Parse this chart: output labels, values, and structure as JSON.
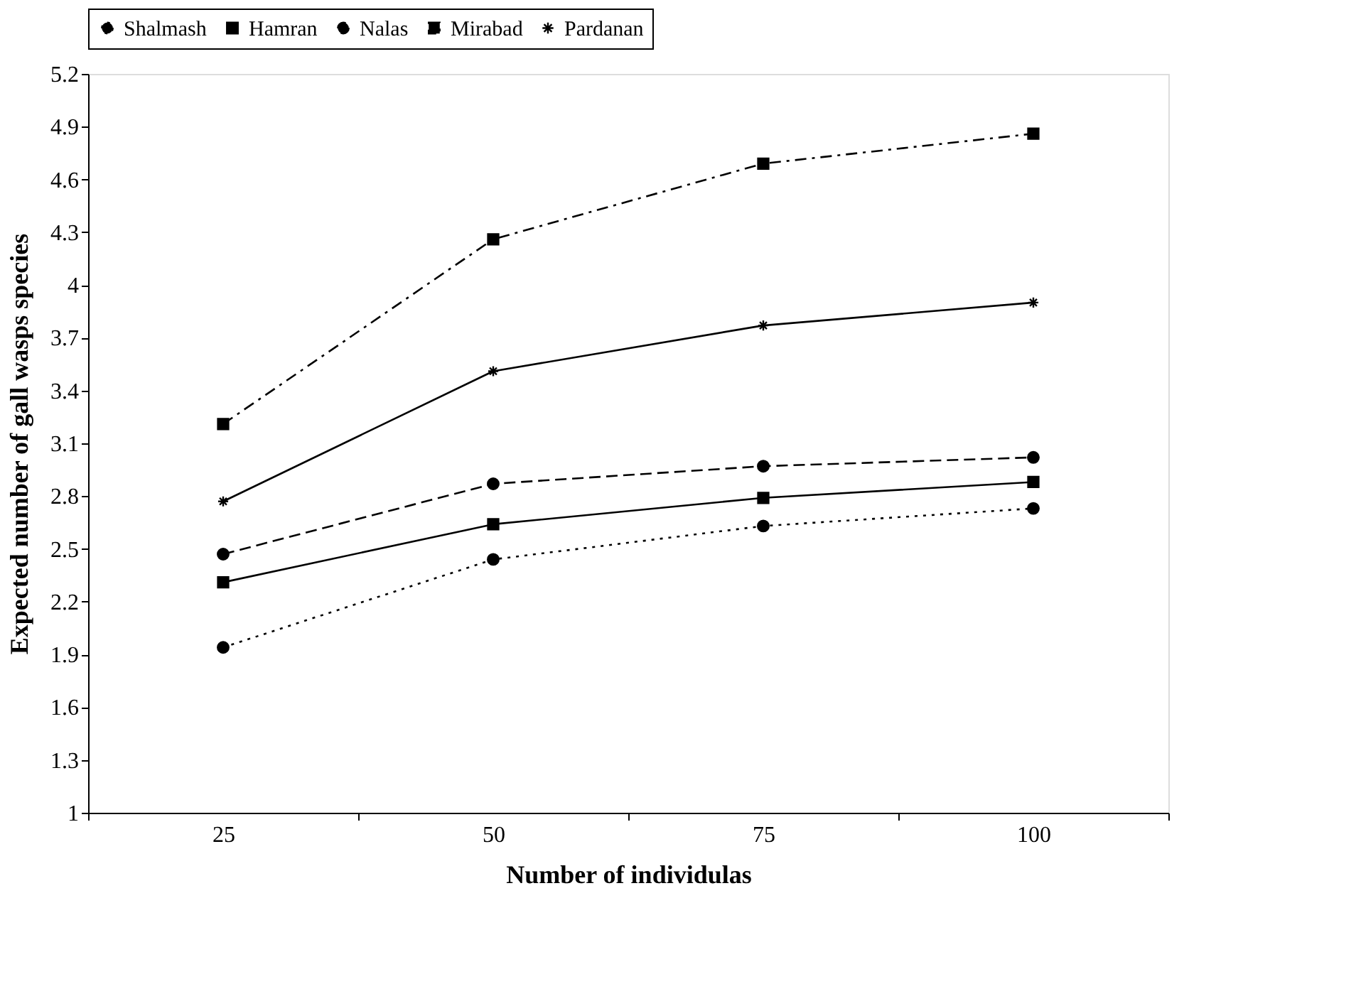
{
  "chart_data": {
    "type": "line",
    "xlabel": "Number of individulas",
    "ylabel": "Expected number of gall wasps species",
    "categories": [
      "25",
      "50",
      "75",
      "100"
    ],
    "series": [
      {
        "name": "Shalmash",
        "color": "#000000",
        "marker": "circle",
        "line_style": "dotted",
        "values": [
          1.94,
          2.44,
          2.63,
          2.73
        ]
      },
      {
        "name": "Hamran",
        "color": "#000000",
        "marker": "square",
        "line_style": "solid",
        "values": [
          2.31,
          2.64,
          2.79,
          2.88
        ]
      },
      {
        "name": "Nalas",
        "color": "#000000",
        "marker": "circle",
        "line_style": "dashed",
        "values": [
          2.47,
          2.87,
          2.97,
          3.02
        ]
      },
      {
        "name": "Mirabad",
        "color": "#000000",
        "marker": "square",
        "line_style": "dashdot",
        "values": [
          3.21,
          4.26,
          4.69,
          4.86
        ]
      },
      {
        "name": "Pardanan",
        "color": "#000000",
        "marker": "cross",
        "line_style": "solid",
        "values": [
          2.77,
          3.51,
          3.77,
          3.9
        ]
      }
    ],
    "ylim": [
      1,
      5.2
    ],
    "yticks": [
      1,
      1.3,
      1.6,
      1.9,
      2.2,
      2.5,
      2.8,
      3.1,
      3.4,
      3.7,
      4,
      4.3,
      4.6,
      4.9,
      5.2
    ],
    "grid": false,
    "legend": "top"
  }
}
